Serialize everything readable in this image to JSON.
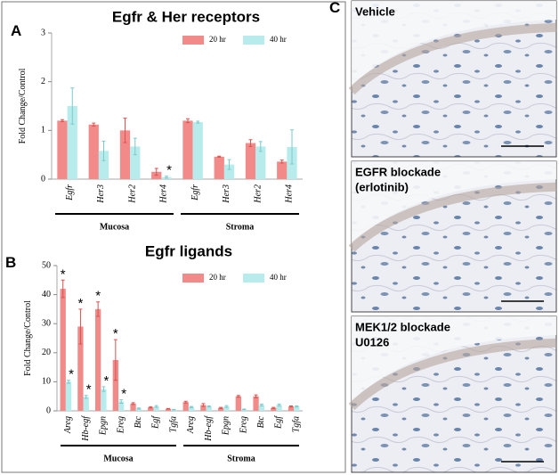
{
  "panel_labels": [
    "A",
    "B",
    "C"
  ],
  "chart_data": [
    {
      "type": "bar",
      "title": "Egfr & Her receptors",
      "y_label": "Fold Change/Control",
      "categories": [
        "Egfr",
        "Her3",
        "Her2",
        "Her4",
        "Egfr",
        "Her3",
        "Her2",
        "Her4"
      ],
      "group_labels": [
        "Mucosa",
        "Stroma"
      ],
      "series": [
        {
          "name": "20 hr",
          "color": "#f28a8a",
          "values": [
            1.2,
            1.12,
            1.0,
            0.15,
            1.2,
            0.46,
            0.74,
            0.36
          ],
          "errors": [
            0.02,
            0.03,
            0.25,
            0.07,
            0.04,
            0.01,
            0.07,
            0.03
          ],
          "annotations": [
            null,
            null,
            null,
            null,
            null,
            null,
            null,
            null
          ]
        },
        {
          "name": "40 hr",
          "color": "#b8ecec",
          "values": [
            1.5,
            0.58,
            0.67,
            0.04,
            1.17,
            0.3,
            0.67,
            0.66
          ],
          "errors": [
            0.37,
            0.2,
            0.17,
            0.02,
            0.02,
            0.1,
            0.1,
            0.35
          ],
          "annotations": [
            null,
            null,
            null,
            "*",
            null,
            null,
            null,
            null
          ]
        }
      ],
      "ylim": [
        0,
        3
      ],
      "yticks": [
        0,
        1,
        2,
        3
      ],
      "legend": "top-right"
    },
    {
      "type": "bar",
      "title": "Egfr ligands",
      "y_label": "Fold Change/Control",
      "categories": [
        "Areg",
        "Hb-egf",
        "Epgn",
        "Ereg",
        "Btc",
        "Egf",
        "Tgfa",
        "Areg",
        "Hb-egf",
        "Epgn",
        "Ereg",
        "Btc",
        "Egf",
        "Tgfa"
      ],
      "group_labels": [
        "Mucosa",
        "Stroma"
      ],
      "series": [
        {
          "name": "20 hr",
          "color": "#f28a8a",
          "values": [
            42,
            29,
            35,
            17.5,
            2.5,
            1.2,
            0.7,
            3,
            2,
            1,
            5,
            5,
            1,
            1.5
          ],
          "errors": [
            3,
            6,
            2.5,
            7,
            0.3,
            0.2,
            0.1,
            0.3,
            0.5,
            0.2,
            0.3,
            0.5,
            0.2,
            0.2
          ],
          "annotations": [
            "*",
            "*",
            "*",
            "*",
            null,
            null,
            null,
            null,
            null,
            null,
            null,
            null,
            null,
            null
          ]
        },
        {
          "name": "40 hr",
          "color": "#b8ecec",
          "values": [
            10,
            4.8,
            7.5,
            3.2,
            0.8,
            1.5,
            0.4,
            1.3,
            1.5,
            1.5,
            0.5,
            2,
            2,
            1.5
          ],
          "errors": [
            0.5,
            0.5,
            0.8,
            0.6,
            0.2,
            0.3,
            0.1,
            0.2,
            0.2,
            0.3,
            0.1,
            0.3,
            0.3,
            0.2
          ],
          "annotations": [
            "*",
            "*",
            "*",
            "*",
            null,
            null,
            null,
            null,
            null,
            null,
            null,
            null,
            null,
            null
          ]
        }
      ],
      "ylim": [
        0,
        50
      ],
      "yticks": [
        0,
        10,
        20,
        30,
        40,
        50
      ],
      "legend": "top-right"
    }
  ],
  "micrographs": [
    {
      "caption": [
        "Vehicle"
      ]
    },
    {
      "caption": [
        "EGFR blockade",
        "(erlotinib)"
      ]
    },
    {
      "caption": [
        "MEK1/2 blockade",
        "U0126"
      ]
    }
  ]
}
